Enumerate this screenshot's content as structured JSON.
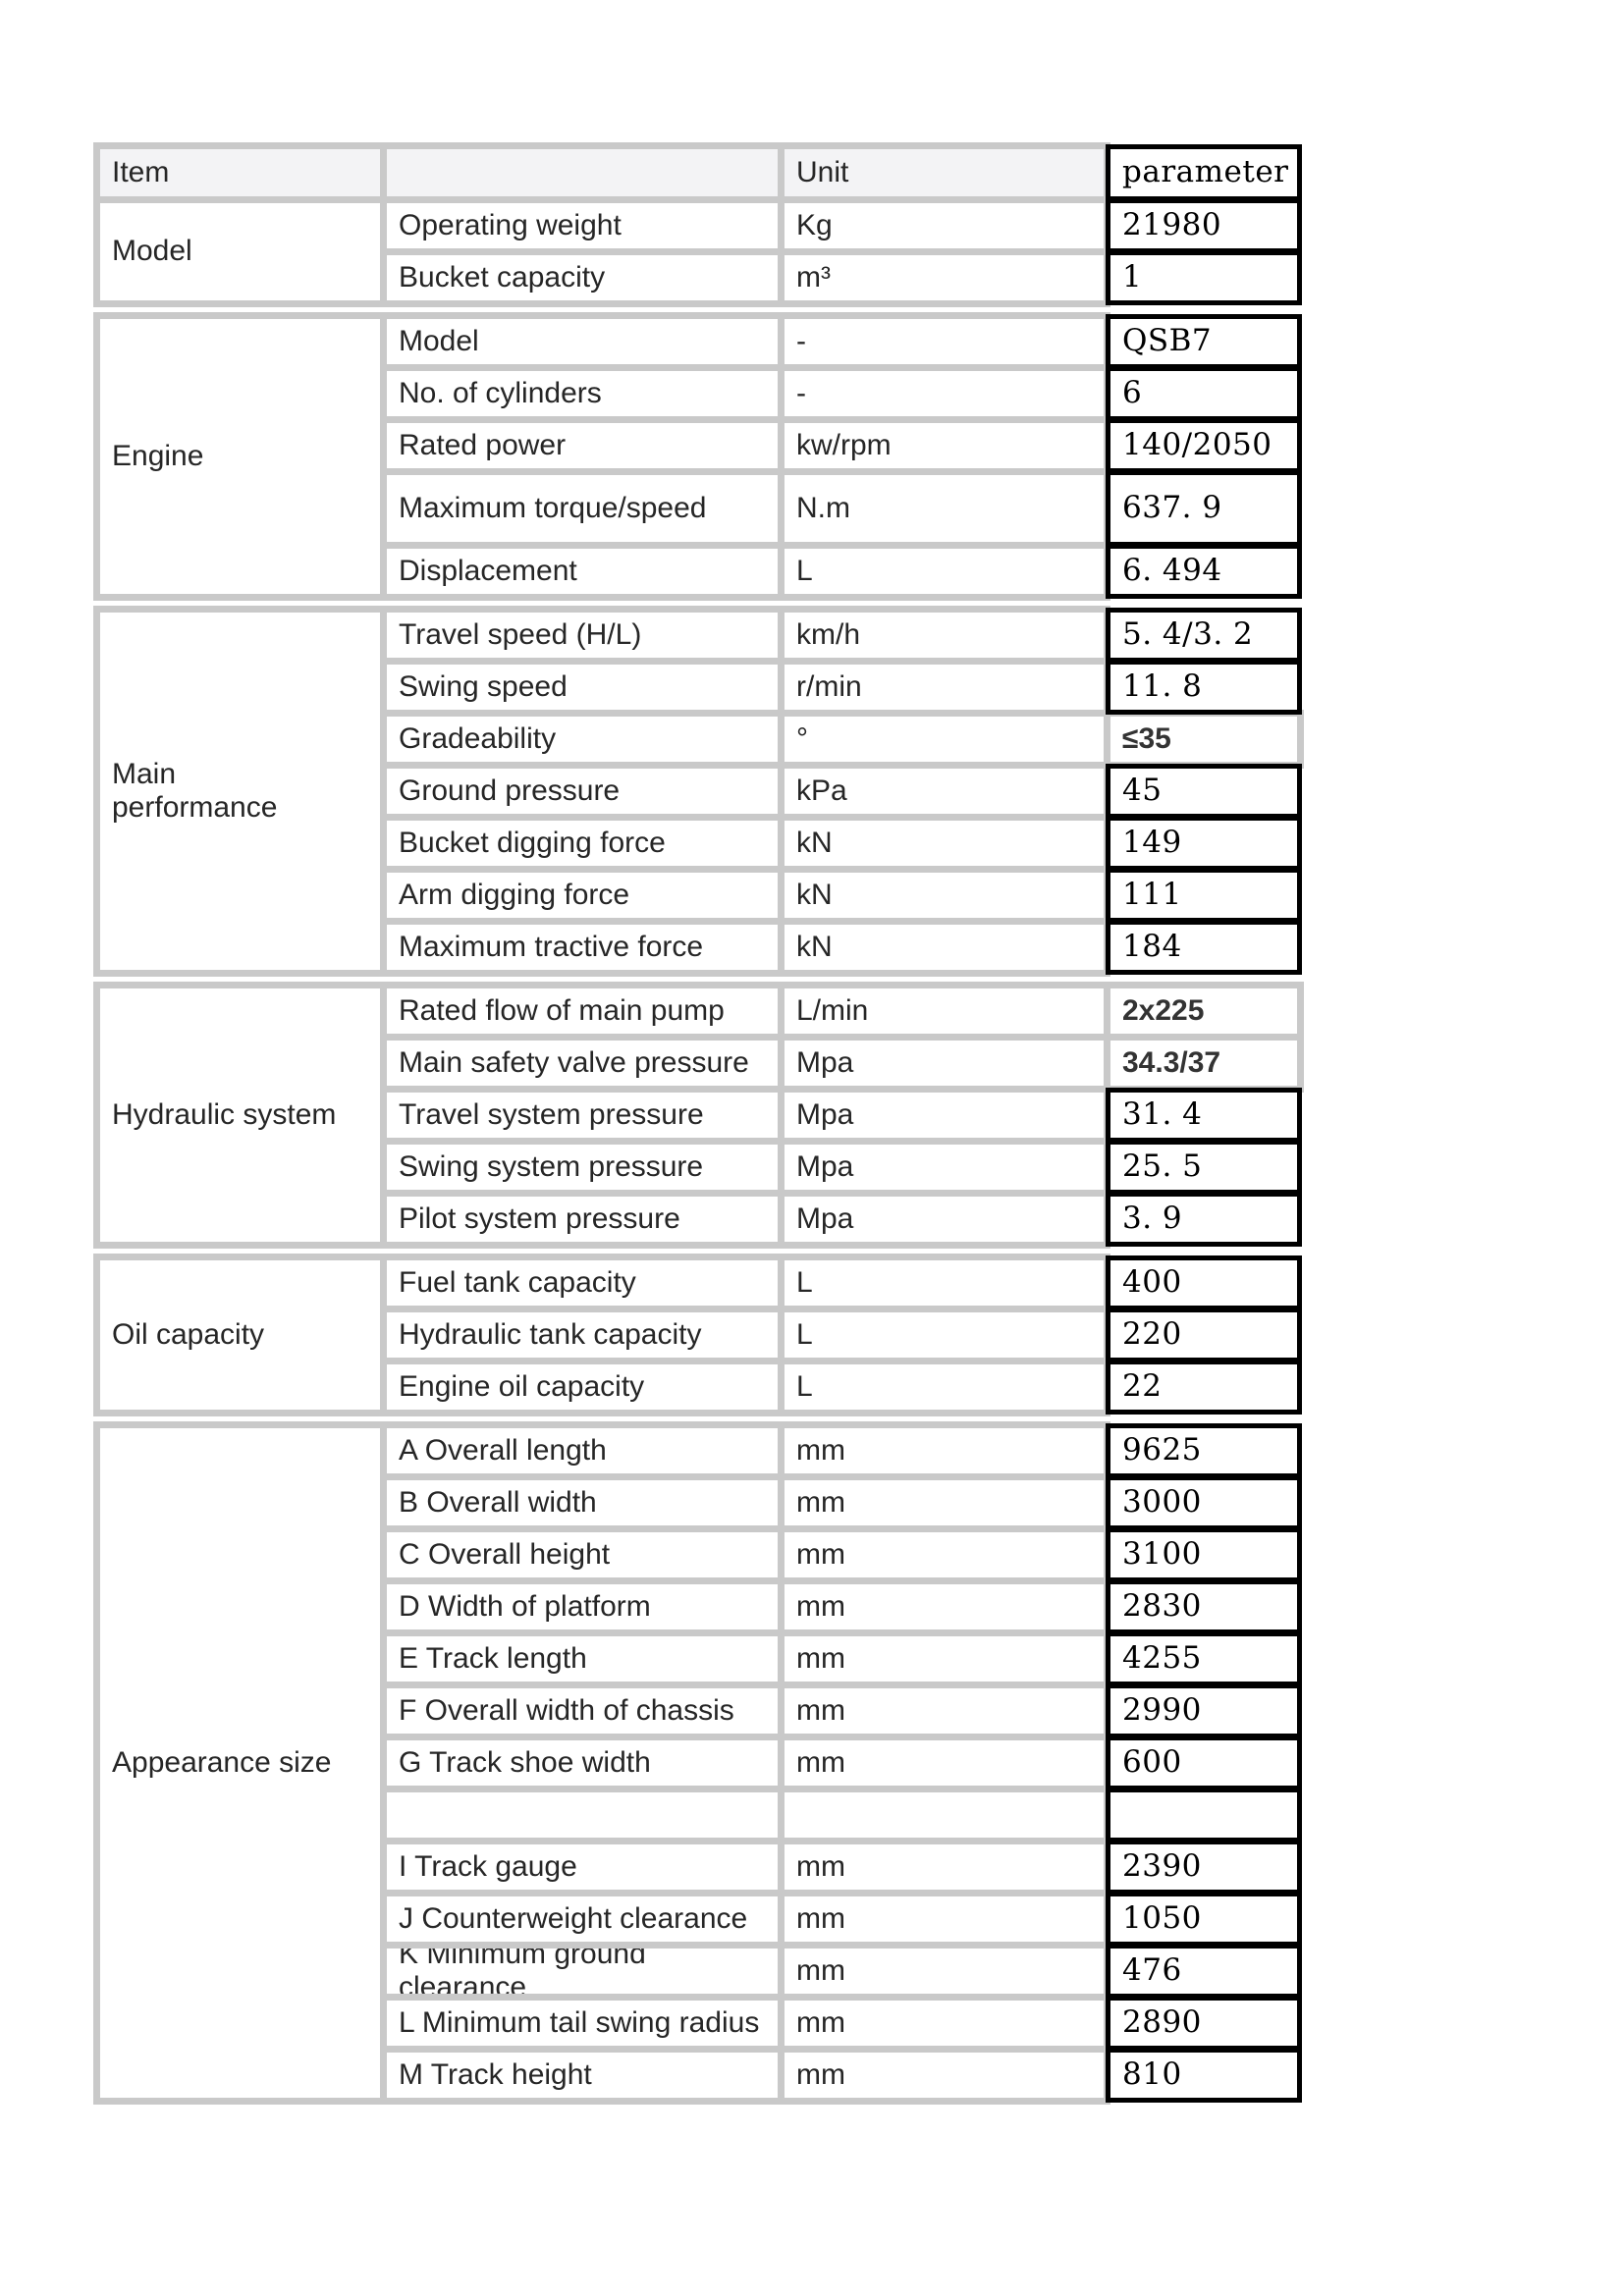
{
  "page": {
    "background": "#ffffff"
  },
  "table": {
    "colors": {
      "grid_border": "#c9c9c9",
      "black_border": "#000000",
      "header_bg": "#f3f3f5",
      "cell_bg": "#ffffff",
      "label_text": "#262626",
      "value_text": "#000000"
    },
    "headers": {
      "item": "Item",
      "sub": "",
      "unit": "Unit",
      "parameter": "parameter"
    },
    "groups": [
      {
        "label": "Model",
        "rows": [
          {
            "label": "Operating weight",
            "unit": "Kg",
            "value": "21980",
            "style": "serif"
          },
          {
            "label": "Bucket capacity",
            "unit": "m³",
            "value": "1",
            "style": "serif"
          }
        ]
      },
      {
        "label": "Engine",
        "rows": [
          {
            "label": "Model",
            "unit": "-",
            "value": "QSB7",
            "style": "serif"
          },
          {
            "label": "No. of cylinders",
            "unit": "-",
            "value": "6",
            "style": "serif"
          },
          {
            "label": "Rated power",
            "unit": "kw/rpm",
            "value": "140/2050",
            "style": "serif"
          },
          {
            "label": "Maximum torque/speed",
            "unit": "N.m",
            "value": "637. 9",
            "style": "serif",
            "tall": true
          },
          {
            "label": "Displacement",
            "unit": "L",
            "value": "6. 494",
            "style": "serif"
          }
        ]
      },
      {
        "label": "Main performance",
        "wrap": true,
        "rows": [
          {
            "label": "Travel speed (H/L)",
            "unit": "km/h",
            "value": "5. 4/3. 2",
            "style": "serif"
          },
          {
            "label": "Swing speed",
            "unit": "r/min",
            "value": "11. 8",
            "style": "serif"
          },
          {
            "label": "Gradeability",
            "unit": "°",
            "value": "≤35",
            "style": "sans"
          },
          {
            "label": "Ground pressure",
            "unit": "kPa",
            "value": "45",
            "style": "serif"
          },
          {
            "label": "Bucket digging force",
            "unit": "kN",
            "value": "149",
            "style": "serif"
          },
          {
            "label": "Arm digging force",
            "unit": "kN",
            "value": "111",
            "style": "serif"
          },
          {
            "label": "Maximum tractive force",
            "unit": "kN",
            "value": "184",
            "style": "serif"
          }
        ]
      },
      {
        "label": "Hydraulic system",
        "rows": [
          {
            "label": "Rated flow of main pump",
            "unit": "L/min",
            "value": "2x225",
            "style": "sans"
          },
          {
            "label": "Main safety valve pressure",
            "unit": "Mpa",
            "value": "34.3/37",
            "style": "sans"
          },
          {
            "label": "Travel system pressure",
            "unit": "Mpa",
            "value": "31. 4",
            "style": "serif"
          },
          {
            "label": "Swing system pressure",
            "unit": "Mpa",
            "value": "25. 5",
            "style": "serif"
          },
          {
            "label": "Pilot system pressure",
            "unit": "Mpa",
            "value": "3. 9",
            "style": "serif"
          }
        ]
      },
      {
        "label": "Oil capacity",
        "rows": [
          {
            "label": "Fuel tank capacity",
            "unit": "L",
            "value": "400",
            "style": "serif"
          },
          {
            "label": "Hydraulic tank capacity",
            "unit": "L",
            "value": "220",
            "style": "serif"
          },
          {
            "label": "Engine oil capacity",
            "unit": "L",
            "value": "22",
            "style": "serif"
          }
        ]
      },
      {
        "label": "Appearance size",
        "rows": [
          {
            "label": "A Overall length",
            "unit": "mm",
            "value": "9625",
            "style": "serif"
          },
          {
            "label": "B Overall width",
            "unit": "mm",
            "value": "3000",
            "style": "serif"
          },
          {
            "label": "C Overall height",
            "unit": "mm",
            "value": "3100",
            "style": "serif"
          },
          {
            "label": "D Width of platform",
            "unit": "mm",
            "value": "2830",
            "style": "serif"
          },
          {
            "label": "E Track length",
            "unit": "mm",
            "value": "4255",
            "style": "serif"
          },
          {
            "label": "F Overall width of chassis",
            "unit": "mm",
            "value": "2990",
            "style": "serif"
          },
          {
            "label": "G Track shoe width",
            "unit": "mm",
            "value": "600",
            "style": "serif"
          },
          {
            "label": "",
            "unit": "",
            "value": "",
            "style": "serif"
          },
          {
            "label": "I Track gauge",
            "unit": "mm",
            "value": "2390",
            "style": "serif"
          },
          {
            "label": "J Counterweight clearance",
            "unit": "mm",
            "value": "1050",
            "style": "serif"
          },
          {
            "label": "K Minimum ground clearance",
            "unit": "mm",
            "value": "476",
            "style": "serif"
          },
          {
            "label": "L Minimum tail swing radius",
            "unit": "mm",
            "value": "2890",
            "style": "serif"
          },
          {
            "label": "M Track height",
            "unit": "mm",
            "value": "810",
            "style": "serif"
          }
        ]
      }
    ]
  }
}
